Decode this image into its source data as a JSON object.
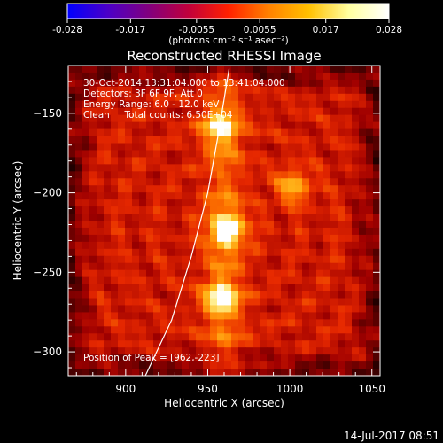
{
  "chart_data": {
    "type": "heatmap",
    "title": "Reconstructed RHESSI Image",
    "xlabel": "Heliocentric X (arcsec)",
    "ylabel": "Heliocentric Y (arcsec)",
    "xlim": [
      865,
      1055
    ],
    "ylim": [
      -315,
      -120
    ],
    "x_ticks": [
      900,
      950,
      1000,
      1050
    ],
    "y_ticks": [
      -150,
      -200,
      -250,
      -300
    ],
    "colorbar": {
      "ticks": [
        "-0.028",
        "-0.017",
        "-0.0055",
        "0.0055",
        "0.017",
        "0.028"
      ],
      "range": [
        -0.028,
        0.028
      ],
      "units_label": "(photons cm⁻² s⁻¹ asec⁻²)",
      "colormap": [
        "#0000ff",
        "#4b00c8",
        "#800080",
        "#c0003c",
        "#ff2000",
        "#ff8000",
        "#ffc000",
        "#ffffa0",
        "#ffffff"
      ]
    },
    "annotations": [
      "30-Oct-2014 13:31:04.000 to 13:41:04.000",
      "Detectors: 3F 6F 9F, Att 0",
      "Energy Range: 6.0 - 12.0 keV",
      "Clean     Total counts: 6.50E+04"
    ],
    "peak_label": "Position of Peak = [962,-223]",
    "peak": [
      962,
      -223
    ],
    "sources": [
      {
        "x": 962,
        "y": -223,
        "intensity": 1.0
      },
      {
        "x": 958,
        "y": -266,
        "intensity": 0.8
      },
      {
        "x": 1002,
        "y": -196,
        "intensity": 0.65
      },
      {
        "x": 957,
        "y": -160,
        "intensity": 0.7
      }
    ],
    "limb_curve": [
      [
        912,
        -315
      ],
      [
        928,
        -280
      ],
      [
        940,
        -240
      ],
      [
        950,
        -200
      ],
      [
        957,
        -160
      ],
      [
        963,
        -122
      ]
    ]
  },
  "footer": {
    "timestamp": "14-Jul-2017 08:51"
  }
}
